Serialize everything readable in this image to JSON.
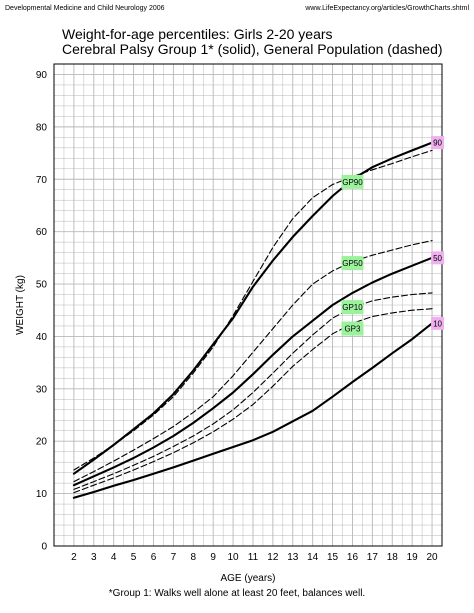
{
  "header": {
    "left": "Developmental Medicine and Child Neurology 2006",
    "right": "www.LifeExpectancy.org/articles/GrowthCharts.shtml"
  },
  "footnote": "*Group 1: Walks well alone at least 20 feet, balances well.",
  "colors": {
    "grid": "#b8b8b8",
    "line": "#000000",
    "gp_label_bg": "#9cf29c",
    "pct_label_bg": "#f0b0f0"
  },
  "chart_data": {
    "type": "line",
    "title": "Weight-for-age percentiles: Girls 2-20 years",
    "subtitle": "Cerebral Palsy Group 1* (solid), General Population (dashed)",
    "xlabel": "AGE (years)",
    "ylabel": "WEIGHT (kg)",
    "xlim": [
      1,
      20.5
    ],
    "ylim": [
      0,
      92
    ],
    "xticks": [
      2,
      3,
      4,
      5,
      6,
      7,
      8,
      9,
      10,
      11,
      12,
      13,
      14,
      15,
      16,
      17,
      18,
      19,
      20
    ],
    "yticks": [
      0,
      10,
      20,
      30,
      40,
      50,
      60,
      70,
      80,
      90
    ],
    "grid": true,
    "x": [
      2,
      3,
      4,
      5,
      6,
      7,
      8,
      9,
      10,
      11,
      12,
      13,
      14,
      15,
      16,
      17,
      18,
      19,
      20
    ],
    "series": [
      {
        "name": "90",
        "style": "solid",
        "values": [
          13.8,
          16.5,
          19.3,
          22.3,
          25.3,
          29.0,
          33.5,
          38.5,
          43.5,
          49.5,
          54.5,
          59.0,
          63.0,
          66.8,
          70.0,
          72.3,
          74.0,
          75.5,
          77.0
        ]
      },
      {
        "name": "50",
        "style": "solid",
        "values": [
          11.6,
          13.3,
          15.0,
          16.8,
          18.8,
          21.0,
          23.5,
          26.3,
          29.3,
          32.8,
          36.5,
          40.0,
          43.0,
          46.0,
          48.3,
          50.3,
          52.0,
          53.5,
          55.0
        ]
      },
      {
        "name": "10",
        "style": "solid",
        "values": [
          9.2,
          10.3,
          11.5,
          12.6,
          13.8,
          15.0,
          16.3,
          17.6,
          18.9,
          20.2,
          21.8,
          23.8,
          25.8,
          28.5,
          31.3,
          34.0,
          36.8,
          39.5,
          42.5
        ]
      },
      {
        "name": "GP90",
        "style": "dashed",
        "values": [
          14.5,
          16.8,
          19.3,
          22.0,
          25.0,
          28.5,
          33.0,
          38.0,
          44.0,
          50.5,
          57.0,
          62.5,
          66.5,
          69.0,
          70.5,
          71.8,
          73.0,
          74.3,
          75.5
        ]
      },
      {
        "name": "GP50",
        "style": "dashed",
        "values": [
          12.3,
          14.2,
          16.2,
          18.3,
          20.5,
          22.8,
          25.5,
          28.5,
          32.5,
          37.0,
          41.5,
          46.0,
          50.0,
          52.5,
          54.3,
          55.5,
          56.5,
          57.5,
          58.3
        ]
      },
      {
        "name": "GP10",
        "style": "dashed",
        "values": [
          10.8,
          12.3,
          13.8,
          15.4,
          17.1,
          19.0,
          21.0,
          23.3,
          26.0,
          29.3,
          33.0,
          36.8,
          40.3,
          43.5,
          45.5,
          46.8,
          47.5,
          48.0,
          48.3
        ]
      },
      {
        "name": "GP3",
        "style": "dashed",
        "values": [
          10.2,
          11.6,
          13.0,
          14.5,
          16.1,
          17.8,
          19.7,
          21.8,
          24.2,
          27.0,
          30.5,
          34.3,
          37.5,
          40.5,
          42.5,
          43.8,
          44.5,
          45.0,
          45.3
        ]
      }
    ],
    "end_labels": [
      "90",
      "50",
      "10"
    ],
    "gp_labels": [
      {
        "text": "GP90",
        "x": 16,
        "y": 69.5
      },
      {
        "text": "GP50",
        "x": 16,
        "y": 54.0
      },
      {
        "text": "GP10",
        "x": 16,
        "y": 45.6
      },
      {
        "text": "GP3",
        "x": 16,
        "y": 41.5
      }
    ]
  }
}
